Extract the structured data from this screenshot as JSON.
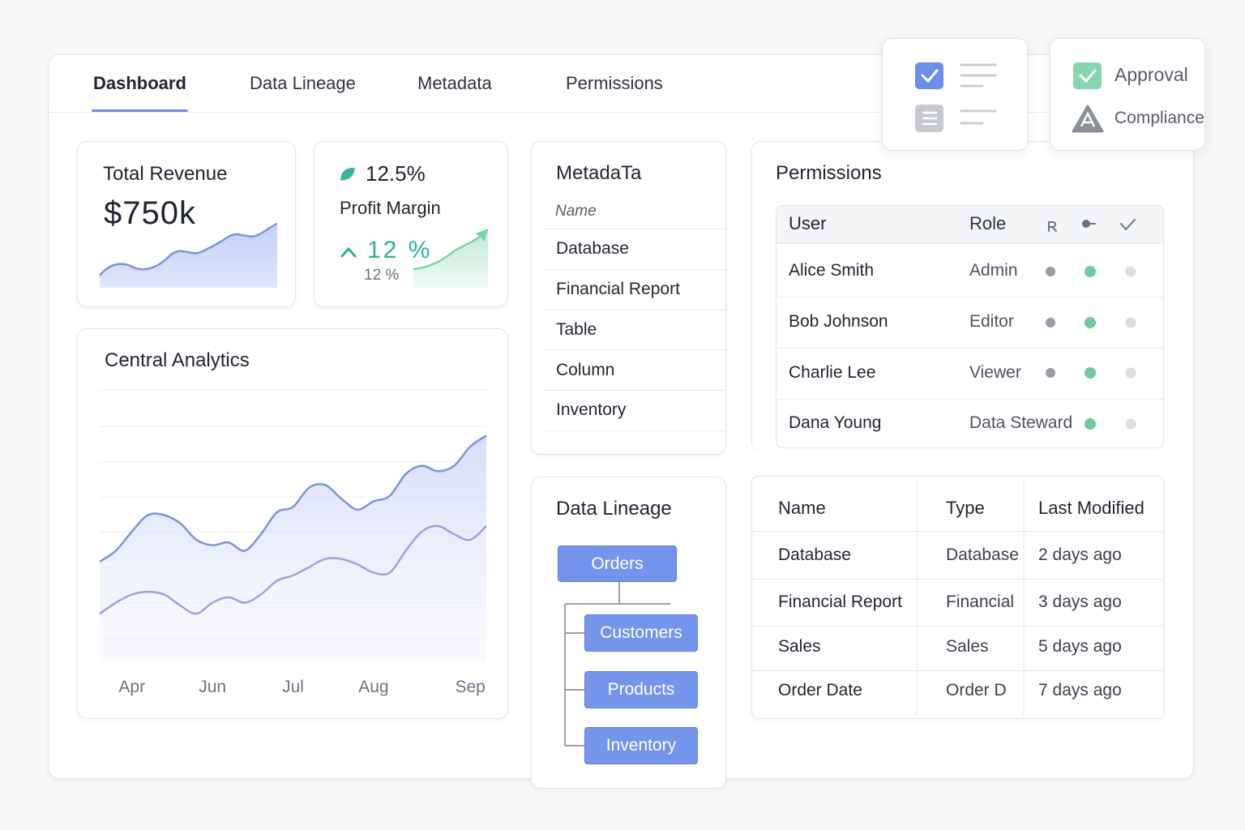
{
  "tabs": [
    "Dashboard",
    "Data Lineage",
    "Metadata",
    "Permissions"
  ],
  "status_card": {
    "items": [
      "Approval",
      "Compliance"
    ]
  },
  "revenue_card": {
    "title": "Total Revenue",
    "value": "$750k"
  },
  "profit_card": {
    "value": "12.5%",
    "label": "Profit Margin",
    "change": "12 %",
    "sub": "12 %"
  },
  "chart_data": {
    "type": "line",
    "title": "Central Analytics",
    "categories": [
      null,
      null,
      "Apr",
      null,
      null,
      null,
      null,
      "Jun",
      null,
      null,
      null,
      null,
      "Jul",
      null,
      null,
      null,
      null,
      "Aug",
      null,
      null,
      null,
      null,
      null,
      "Sep",
      null
    ],
    "series": [
      {
        "color": "#7b93dc",
        "values": [
          37,
          41,
          48,
          54,
          54,
          51,
          45,
          43,
          44,
          41,
          47,
          55,
          57,
          64,
          65,
          60,
          56,
          59,
          61,
          69,
          72,
          70,
          72,
          79,
          83
        ]
      },
      {
        "color": "#a99bd9",
        "values": [
          18,
          22,
          25,
          26,
          25,
          21,
          18,
          22,
          24,
          22,
          25,
          30,
          32,
          35,
          38,
          38,
          36,
          33,
          33,
          41,
          48,
          50,
          47,
          45,
          50
        ]
      }
    ],
    "ylim": [
      0,
      100
    ]
  },
  "metadata": {
    "title": "MetadaTa",
    "header": "Name",
    "rows": [
      "Database",
      "Financial Report",
      "Table",
      "Column",
      "Inventory"
    ]
  },
  "lineage": {
    "title": "Data Lineage",
    "root": "Orders",
    "children": [
      "Customers",
      "Products",
      "Inventory"
    ]
  },
  "permissions": {
    "title": "Permissions",
    "columns": [
      "User",
      "Role"
    ],
    "rows": [
      [
        "Alice Smith",
        "Admin"
      ],
      [
        "Bob Johnson",
        "Editor"
      ],
      [
        "Charlie Lee",
        "Viewer"
      ],
      [
        "Dana Young",
        "Data Steward"
      ]
    ]
  },
  "files": {
    "columns": [
      "Name",
      "Type",
      "Last Modified"
    ],
    "rows": [
      [
        "Database",
        "Database",
        "2 days ago"
      ],
      [
        "Financial Report",
        "Financial",
        "3 days ago"
      ],
      [
        "Sales",
        "Sales",
        "5 days ago"
      ],
      [
        "Order Date",
        "Order D",
        "7 days ago"
      ]
    ]
  }
}
